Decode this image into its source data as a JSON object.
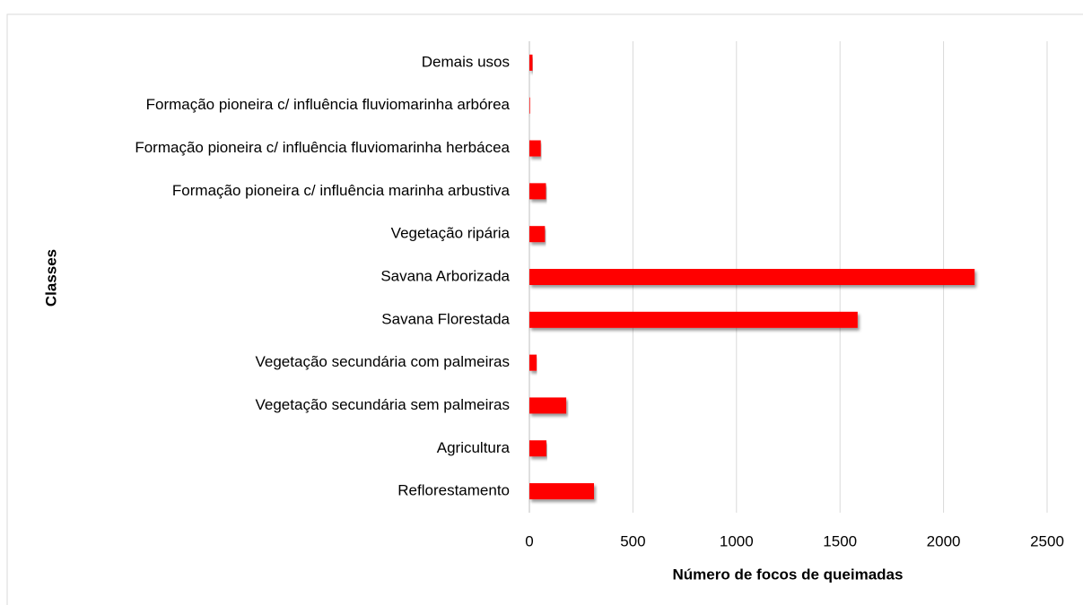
{
  "chart_data": {
    "type": "bar",
    "orientation": "horizontal",
    "xlabel": "Número de focos de queimadas",
    "ylabel": "Classes",
    "categories": [
      "Demais usos",
      "Formação pioneira c/ influência fluviomarinha arbórea",
      "Formação pioneira c/ influência fluviomarinha herbácea",
      "Formação pioneira c/ influência marinha arbustiva",
      "Vegetação ripária",
      "Savana Arborizada",
      "Savana Florestada",
      "Vegetação secundária com palmeiras",
      "Vegetação secundária sem palmeiras",
      "Agricultura",
      "Reflorestamento"
    ],
    "values": [
      15,
      3,
      55,
      80,
      75,
      2150,
      1585,
      35,
      178,
      82,
      312
    ],
    "color": "#ff0000",
    "xlim": [
      0,
      2500
    ],
    "xticks": [
      0,
      500,
      1000,
      1500,
      2000,
      2500
    ],
    "grid": true
  }
}
